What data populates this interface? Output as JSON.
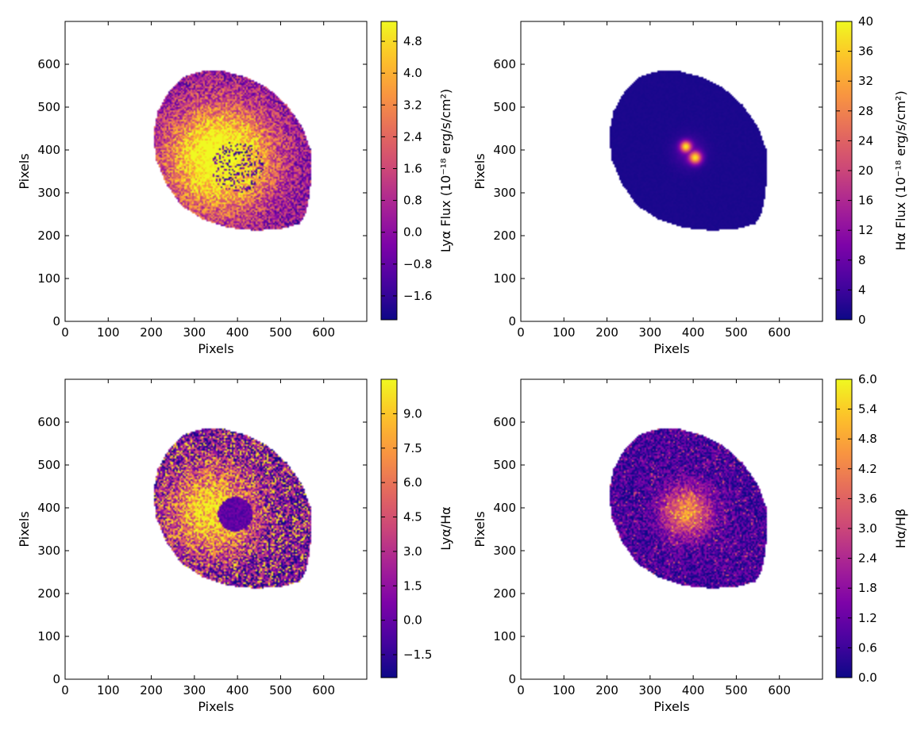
{
  "chart_data": [
    {
      "type": "heatmap",
      "panel": "top-left",
      "xlabel": "Pixels",
      "ylabel": "Pixels",
      "xlim": [
        0,
        700
      ],
      "ylim": [
        0,
        700
      ],
      "xticks": [
        0,
        100,
        200,
        300,
        400,
        500,
        600
      ],
      "yticks": [
        0,
        100,
        200,
        300,
        400,
        500,
        600
      ],
      "colormap": "plasma",
      "colorbar": {
        "label": "Lyα Flux (10⁻¹⁸ erg/s/cm²)",
        "range": [
          -2.2,
          5.3
        ],
        "ticks": [
          "−1.6",
          "−0.8",
          "0.0",
          "0.8",
          "1.6",
          "2.4",
          "3.2",
          "4.0",
          "4.8"
        ],
        "tick_values": [
          -1.6,
          -0.8,
          0.0,
          0.8,
          1.6,
          2.4,
          3.2,
          4.0,
          4.8
        ]
      },
      "features": {
        "bright_center": [
          360,
          380
        ],
        "pattern": "diffuse-bright-core",
        "noise": 0.55
      }
    },
    {
      "type": "heatmap",
      "panel": "top-right",
      "xlabel": "Pixels",
      "ylabel": "Pixels",
      "xlim": [
        0,
        700
      ],
      "ylim": [
        0,
        700
      ],
      "xticks": [
        0,
        100,
        200,
        300,
        400,
        500,
        600
      ],
      "yticks": [
        0,
        100,
        200,
        300,
        400,
        500,
        600
      ],
      "colormap": "plasma",
      "colorbar": {
        "label": "Hα Flux (10⁻¹⁸ erg/s/cm²)",
        "range": [
          0,
          40
        ],
        "ticks": [
          "0",
          "4",
          "8",
          "12",
          "16",
          "20",
          "24",
          "28",
          "32",
          "36",
          "40"
        ],
        "tick_values": [
          0,
          4,
          8,
          12,
          16,
          20,
          24,
          28,
          32,
          36,
          40
        ]
      },
      "features": {
        "bright_center": [
          390,
          395
        ],
        "pattern": "compact-knots",
        "noise": 0.04
      }
    },
    {
      "type": "heatmap",
      "panel": "bottom-left",
      "xlabel": "Pixels",
      "ylabel": "Pixels",
      "xlim": [
        0,
        700
      ],
      "ylim": [
        0,
        700
      ],
      "xticks": [
        0,
        100,
        200,
        300,
        400,
        500,
        600
      ],
      "yticks": [
        0,
        100,
        200,
        300,
        400,
        500,
        600
      ],
      "colormap": "plasma",
      "colorbar": {
        "label": "Lyα/Hα",
        "range": [
          -2.5,
          10.5
        ],
        "ticks": [
          "−1.5",
          "0.0",
          "1.5",
          "3.0",
          "4.5",
          "6.0",
          "7.5",
          "9.0"
        ],
        "tick_values": [
          -1.5,
          0.0,
          1.5,
          3.0,
          4.5,
          6.0,
          7.5,
          9.0
        ]
      },
      "features": {
        "bright_center": [
          340,
          390
        ],
        "dark_core": [
          395,
          385
        ],
        "pattern": "ring-dark-core",
        "noise": 0.8
      }
    },
    {
      "type": "heatmap",
      "panel": "bottom-right",
      "xlabel": "Pixels",
      "ylabel": "Pixels",
      "xlim": [
        0,
        700
      ],
      "ylim": [
        0,
        700
      ],
      "xticks": [
        0,
        100,
        200,
        300,
        400,
        500,
        600
      ],
      "yticks": [
        0,
        100,
        200,
        300,
        400,
        500,
        600
      ],
      "colormap": "plasma",
      "colorbar": {
        "label": "Hα/Hβ",
        "range": [
          0,
          6
        ],
        "ticks": [
          "0.0",
          "0.6",
          "1.2",
          "1.8",
          "2.4",
          "3.0",
          "3.6",
          "4.2",
          "4.8",
          "5.4",
          "6.0"
        ],
        "tick_values": [
          0.0,
          0.6,
          1.2,
          1.8,
          2.4,
          3.0,
          3.6,
          4.2,
          4.8,
          5.4,
          6.0
        ]
      },
      "features": {
        "bright_center": [
          385,
          390
        ],
        "pattern": "speckle-warm-core",
        "noise": 0.5
      }
    }
  ]
}
